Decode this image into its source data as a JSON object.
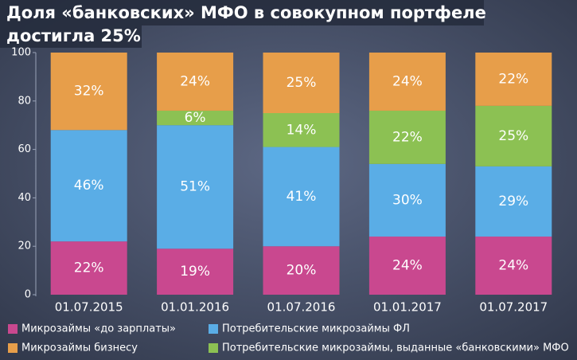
{
  "chart_data": {
    "type": "stacked_bar",
    "title_lines": [
      "Доля «банковских» МФО в совокупном портфеле",
      "достигла 25%"
    ],
    "categories": [
      "01.07.2015",
      "01.01.2016",
      "01.07.2016",
      "01.01.2017",
      "01.07.2017"
    ],
    "series": [
      {
        "name": "Микрозаймы «до зарплаты»",
        "color": "#c9488f",
        "values": [
          22,
          19,
          20,
          24,
          24
        ],
        "value_labels": [
          "22%",
          "19%",
          "20%",
          "24%",
          "24%"
        ]
      },
      {
        "name": "Потребительские микрозаймы ФЛ",
        "color": "#5aade6",
        "values": [
          46,
          51,
          41,
          30,
          29
        ],
        "value_labels": [
          "46%",
          "51%",
          "41%",
          "30%",
          "29%"
        ]
      },
      {
        "name": "Потребительские микрозаймы, выданные «банковскими» МФО",
        "color": "#8cc153",
        "values": [
          null,
          6,
          14,
          22,
          25
        ],
        "value_labels": [
          null,
          "6%",
          "14%",
          "22%",
          "25%"
        ]
      },
      {
        "name": "Микрозаймы бизнесу",
        "color": "#e79e4a",
        "values": [
          32,
          24,
          25,
          24,
          22
        ],
        "value_labels": [
          "32%",
          "24%",
          "25%",
          "24%",
          "22%"
        ]
      }
    ],
    "ylim": [
      0,
      100
    ],
    "yticks": [
      0,
      20,
      40,
      60,
      80,
      100
    ],
    "grid": false
  }
}
